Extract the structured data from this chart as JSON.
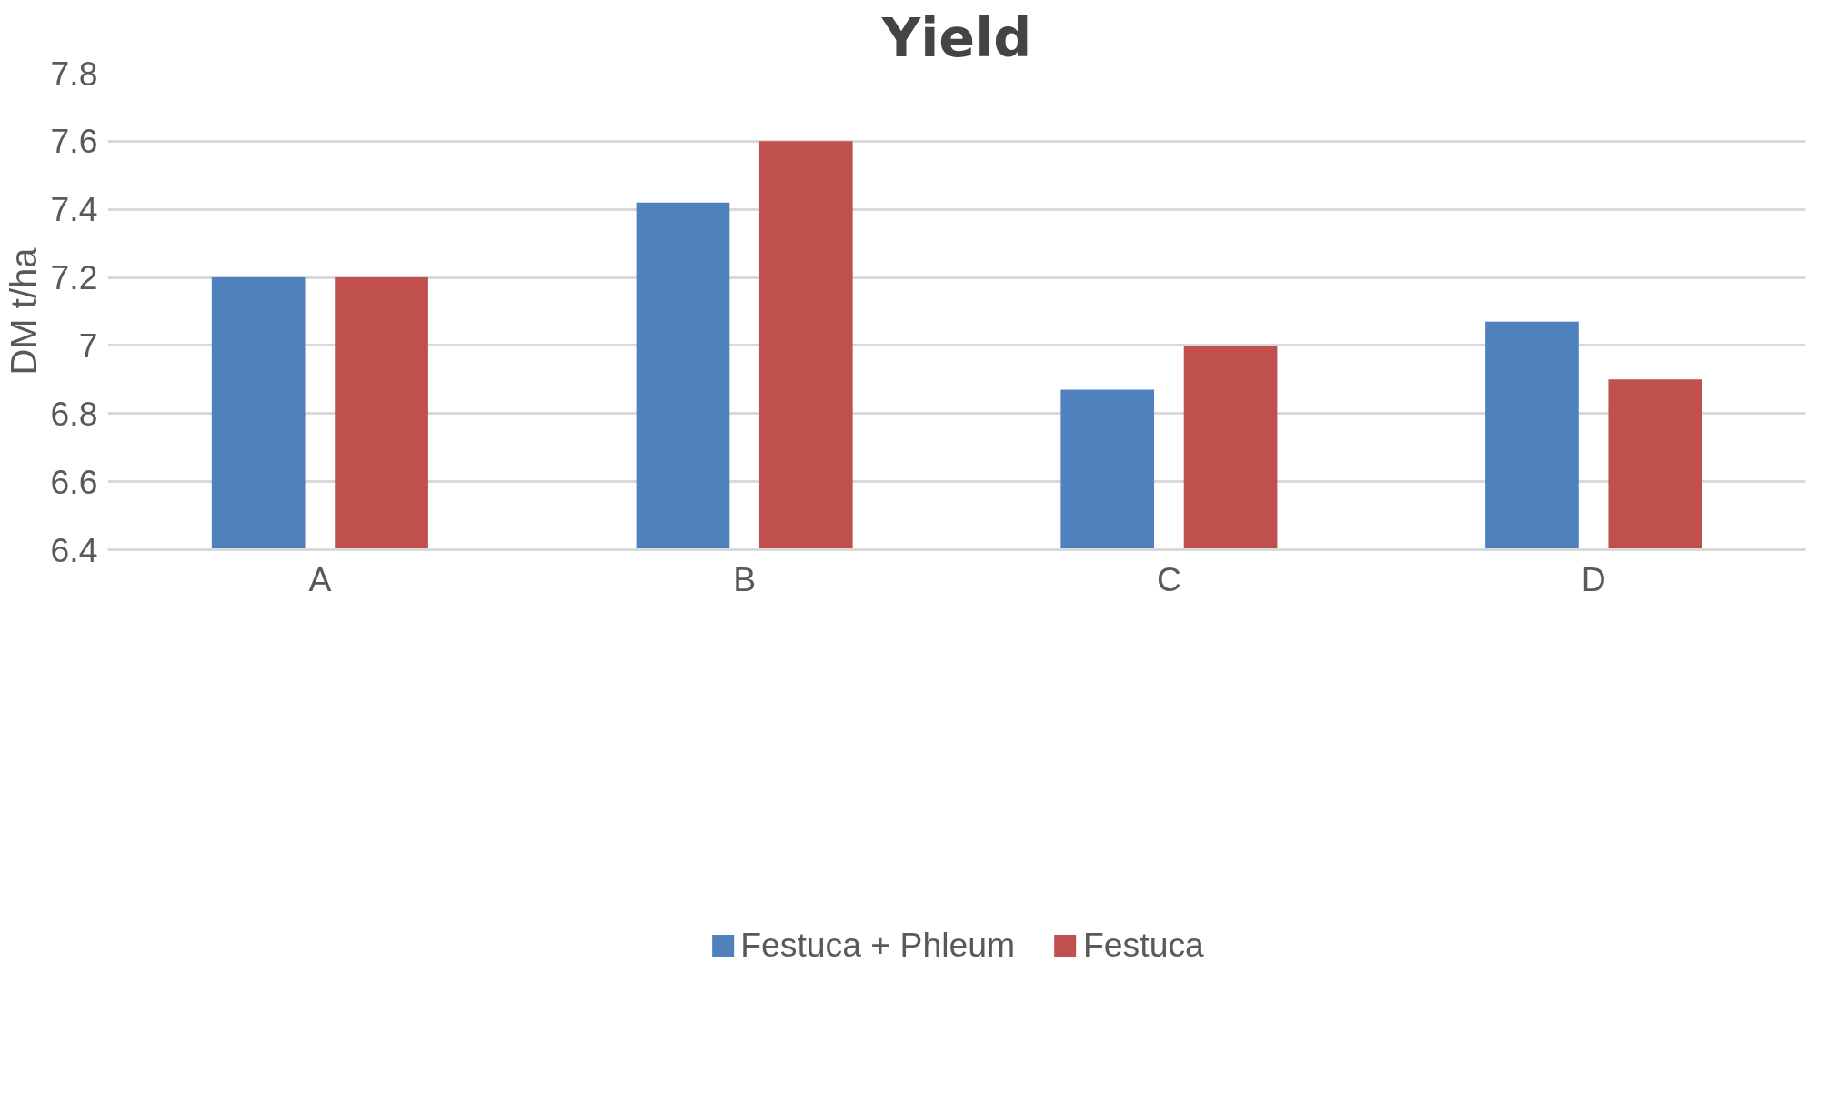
{
  "chart_data": {
    "type": "bar",
    "title": "Yield",
    "ylabel": "DM t/ha",
    "categories": [
      "A",
      "B",
      "C",
      "D"
    ],
    "series": [
      {
        "name": "Festuca + Phleum",
        "color": "#4f81bd",
        "values": [
          7.2,
          7.42,
          6.87,
          7.07
        ]
      },
      {
        "name": "Festuca",
        "color": "#c0504d",
        "values": [
          7.2,
          7.6,
          7.0,
          6.9
        ]
      }
    ],
    "ylim": [
      6.4,
      7.8
    ],
    "yticks": [
      6.4,
      6.6,
      6.8,
      {
        "value": 7,
        "label": "7"
      },
      7.2,
      7.4,
      7.6,
      7.8
    ],
    "grid": "y",
    "legend": "bottom"
  }
}
